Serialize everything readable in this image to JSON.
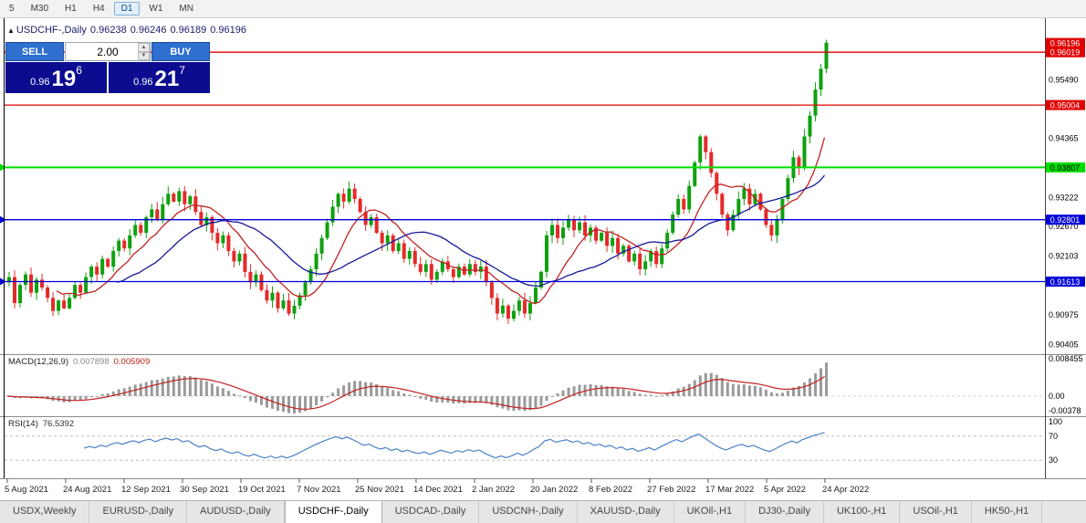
{
  "toolbar": {
    "timeframes": [
      "5",
      "M30",
      "H1",
      "H4",
      "D1",
      "W1",
      "MN"
    ],
    "active": "D1"
  },
  "chart_header": {
    "collapse_arrow": "▲",
    "symbol": "USDCHF-,Daily",
    "open": "0.96238",
    "high": "0.96246",
    "low": "0.96189",
    "close": "0.96196"
  },
  "trade_panel": {
    "sell_label": "SELL",
    "buy_label": "BUY",
    "volume": "2.00",
    "spinner_up": "▲",
    "spinner_down": "▼",
    "sell_price": {
      "prefix": "0.96",
      "main": "19",
      "sup": "6"
    },
    "buy_price": {
      "prefix": "0.96",
      "main": "21",
      "sup": "7"
    }
  },
  "chart_data": {
    "type": "candlestick",
    "title": "USDCHF-,Daily",
    "x_labels": [
      "5 Aug 2021",
      "24 Aug 2021",
      "12 Sep 2021",
      "30 Sep 2021",
      "19 Oct 2021",
      "7 Nov 2021",
      "25 Nov 2021",
      "14 Dec 2021",
      "2 Jan 2022",
      "20 Jan 2022",
      "8 Feb 2022",
      "27 Feb 2022",
      "17 Mar 2022",
      "5 Apr 2022",
      "24 Apr 2022"
    ],
    "y_range": [
      0.9036,
      0.9632
    ],
    "first_open": 0.916,
    "closes": [
      0.917,
      0.912,
      0.9155,
      0.9175,
      0.914,
      0.9165,
      0.915,
      0.913,
      0.9105,
      0.9125,
      0.911,
      0.913,
      0.9155,
      0.914,
      0.917,
      0.919,
      0.9175,
      0.9205,
      0.919,
      0.922,
      0.924,
      0.9225,
      0.925,
      0.927,
      0.9255,
      0.9285,
      0.93,
      0.928,
      0.931,
      0.933,
      0.9315,
      0.9335,
      0.931,
      0.9325,
      0.9295,
      0.927,
      0.9285,
      0.9255,
      0.9235,
      0.925,
      0.922,
      0.92,
      0.9215,
      0.918,
      0.916,
      0.9175,
      0.9145,
      0.9125,
      0.914,
      0.911,
      0.9125,
      0.91,
      0.9115,
      0.9135,
      0.916,
      0.9185,
      0.9215,
      0.9245,
      0.9275,
      0.9305,
      0.933,
      0.9315,
      0.934,
      0.932,
      0.9295,
      0.927,
      0.9285,
      0.9255,
      0.9235,
      0.925,
      0.922,
      0.9235,
      0.9205,
      0.922,
      0.9195,
      0.918,
      0.9195,
      0.9165,
      0.918,
      0.92,
      0.9185,
      0.917,
      0.919,
      0.9175,
      0.9195,
      0.918,
      0.919,
      0.916,
      0.913,
      0.91,
      0.9115,
      0.909,
      0.9105,
      0.9125,
      0.91,
      0.912,
      0.915,
      0.918,
      0.925,
      0.927,
      0.9245,
      0.9265,
      0.928,
      0.926,
      0.9275,
      0.925,
      0.9265,
      0.924,
      0.9255,
      0.923,
      0.9245,
      0.9215,
      0.923,
      0.92,
      0.9215,
      0.9185,
      0.92,
      0.922,
      0.9195,
      0.9225,
      0.9255,
      0.929,
      0.932,
      0.93,
      0.9345,
      0.939,
      0.944,
      0.941,
      0.937,
      0.933,
      0.929,
      0.926,
      0.929,
      0.932,
      0.934,
      0.931,
      0.933,
      0.93,
      0.927,
      0.925,
      0.928,
      0.932,
      0.936,
      0.94,
      0.938,
      0.944,
      0.948,
      0.953,
      0.957,
      0.962
    ],
    "horizontal_lines": [
      {
        "price": 0.96019,
        "label": "0.96019",
        "color": "#e00000",
        "text": "#ffffff",
        "width": 1.3,
        "left_marker": false
      },
      {
        "price": 0.95004,
        "label": "0.95004",
        "color": "#e00000",
        "text": "#ffffff",
        "width": 1.3,
        "left_marker": false
      },
      {
        "price": 0.93807,
        "label": "0.93807",
        "color": "#00dd00",
        "text": "#000000",
        "width": 2,
        "left_marker": true
      },
      {
        "price": 0.92801,
        "label": "0.92801",
        "color": "#0000d8",
        "text": "#ffffff",
        "width": 1.3,
        "left_marker": true
      },
      {
        "price": 0.91613,
        "label": "0.91613",
        "color": "#0000d8",
        "text": "#ffffff",
        "width": 1.3,
        "left_marker": true
      }
    ],
    "current_price": 0.96196,
    "current_price_label": "0.96196",
    "price_axis_labels": [
      "0.95490",
      "0.94365",
      "0.93222",
      "0.92670",
      "0.92103",
      "0.90975",
      "0.90405"
    ],
    "moving_averages": [
      {
        "period": 10,
        "color": "#c22222"
      },
      {
        "period": 21,
        "color": "#16169a"
      }
    ],
    "indicators": {
      "macd": {
        "label": "MACD(12,26,9)",
        "value1": "0.007898",
        "value2": "0.005909",
        "fast": 12,
        "slow": 26,
        "signal": 9,
        "axis": [
          "0.008455",
          "0.00",
          "-0.00378"
        ],
        "hist_color": "#9a9a9a",
        "signal_color": "#c22020"
      },
      "rsi": {
        "label": "RSI(14)",
        "value": "76.5392",
        "period": 14,
        "levels": [
          70,
          30
        ],
        "axis": [
          "100",
          "70",
          "30"
        ],
        "color": "#4a82c8"
      }
    },
    "candle_colors": {
      "up": "#0fa00f",
      "down": "#e42a2a"
    }
  },
  "tabs": {
    "active_index": 3,
    "items": [
      "USDX,Weekly",
      "EURUSD-,Daily",
      "AUDUSD-,Daily",
      "USDCHF-,Daily",
      "USDCAD-,Daily",
      "USDCNH-,Daily",
      "XAUUSD-,Daily",
      "UKOil-,H1",
      "DJ30-,Daily",
      "UK100-,H1",
      "USOil-,H1",
      "HK50-,H1"
    ]
  }
}
